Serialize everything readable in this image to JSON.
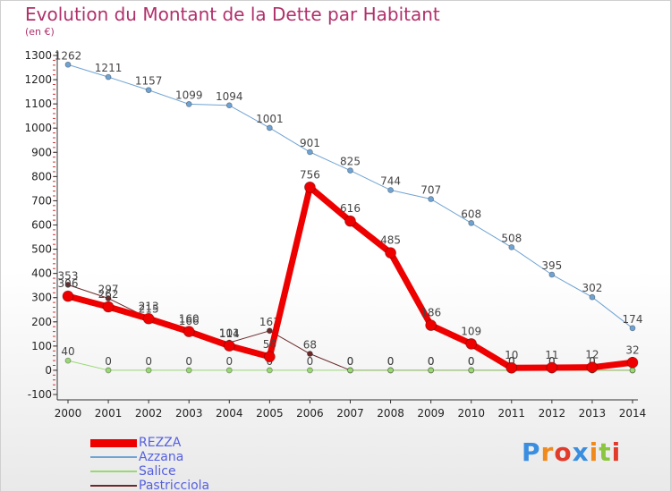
{
  "chart_data": {
    "type": "line",
    "title": "Evolution du Montant de la Dette par Habitant",
    "unit_label": "(en €)",
    "x": [
      "2000",
      "2001",
      "2002",
      "2003",
      "2004",
      "2005",
      "2006",
      "2007",
      "2008",
      "2009",
      "2010",
      "2011",
      "2012",
      "2013",
      "2014"
    ],
    "y_ticks": [
      "-100",
      "0",
      "100",
      "200",
      "300",
      "400",
      "500",
      "600",
      "700",
      "800",
      "900",
      "1000",
      "1100",
      "1200",
      "1300"
    ],
    "ylim": [
      -100,
      1300
    ],
    "grid": false,
    "legend_placement": "bottom-left",
    "series": [
      {
        "name": "Pastricciola",
        "color": "#6b2a2a",
        "width": 1,
        "values": [
          353,
          297,
          215,
          166,
          114,
          163,
          68,
          0,
          0,
          0,
          0,
          0,
          0,
          0,
          0
        ],
        "labels": [
          "353",
          "297",
          "215",
          "166",
          "114",
          "163",
          "68",
          "0",
          "0",
          "0",
          "0",
          "0",
          "0",
          "0",
          "0"
        ]
      },
      {
        "name": "Salice",
        "color": "#99d873",
        "width": 1,
        "values": [
          40,
          0,
          0,
          0,
          0,
          0,
          0,
          0,
          0,
          0,
          0,
          0,
          0,
          0,
          0
        ],
        "labels": [
          "40",
          "0",
          "0",
          "0",
          "0",
          "0",
          "0",
          "0",
          "0",
          "0",
          "0",
          "0",
          "0",
          "0",
          "0"
        ]
      },
      {
        "name": "Azzana",
        "color": "#6fa3d3",
        "width": 1,
        "values": [
          1262,
          1211,
          1157,
          1099,
          1094,
          1001,
          901,
          825,
          744,
          707,
          608,
          508,
          395,
          302,
          174
        ],
        "labels": [
          "1262",
          "1211",
          "1157",
          "1099",
          "1094",
          "1001",
          "901",
          "825",
          "744",
          "707",
          "608",
          "508",
          "395",
          "302",
          "174"
        ]
      },
      {
        "name": "REZZA",
        "color": "#ee0000",
        "width": 7,
        "values": [
          306,
          262,
          213,
          160,
          101,
          56,
          756,
          616,
          485,
          186,
          109,
          10,
          11,
          12,
          32
        ],
        "labels": [
          "306",
          "262",
          "213",
          "160",
          "101",
          "56",
          "756",
          "616",
          "485",
          "186",
          "109",
          "10",
          "11",
          "12",
          "32"
        ]
      }
    ],
    "legend": [
      {
        "name": "REZZA",
        "color": "#ee0000",
        "width": 7
      },
      {
        "name": "Azzana",
        "color": "#6fa3d3",
        "width": 1
      },
      {
        "name": "Salice",
        "color": "#99d873",
        "width": 1
      },
      {
        "name": "Pastricciola",
        "color": "#6b2a2a",
        "width": 1
      }
    ]
  },
  "branding": {
    "logo_text": "Proxiti",
    "logo_colors": [
      "#3a8ee0",
      "#f08a1c",
      "#e23b2a",
      "#3a8ee0",
      "#f08a1c",
      "#8cc63f",
      "#e23b2a"
    ]
  }
}
